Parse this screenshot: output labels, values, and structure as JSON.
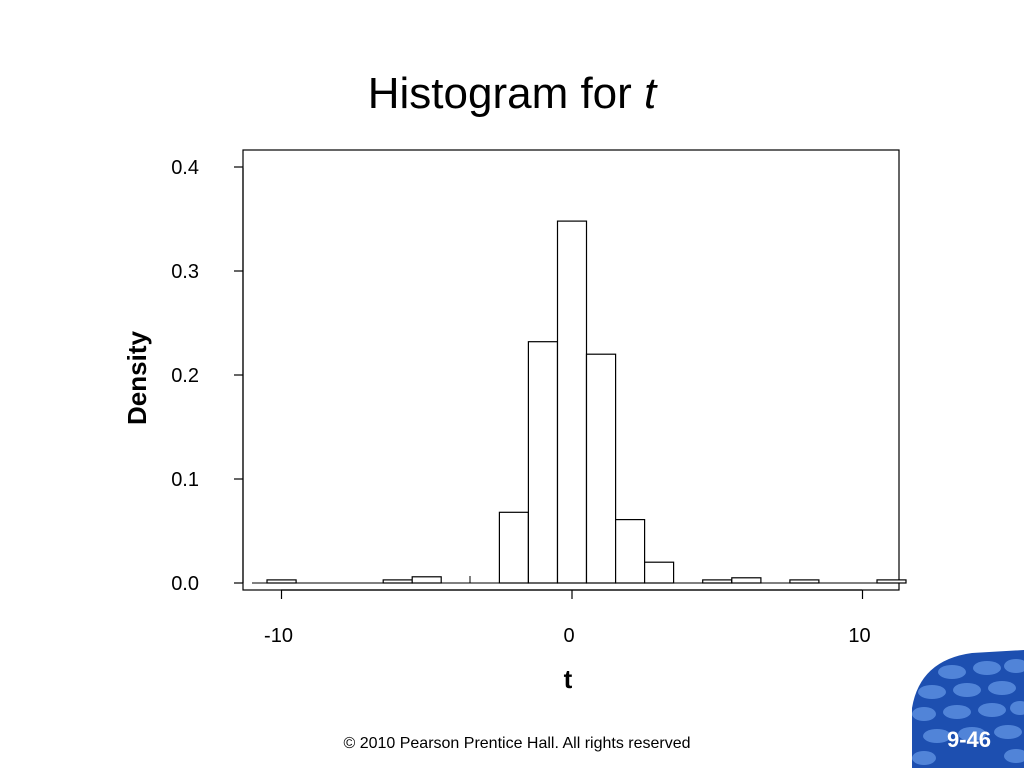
{
  "slide": {
    "title_text": "Histogram for ",
    "title_var": "t",
    "footer": "© 2010 Pearson Prentice Hall. All rights reserved",
    "slide_number": "9-46"
  },
  "colors": {
    "bar_fill": "#ffffff",
    "bar_stroke": "#000000",
    "badge_blue": "#1d4fb0",
    "badge_dots": "#5b8ee0"
  },
  "chart_data": {
    "type": "bar",
    "title": "",
    "xlabel": "t",
    "ylabel": "Density",
    "xlim": [
      -11,
      11
    ],
    "ylim": [
      0,
      0.4
    ],
    "xticks": [
      -10,
      0,
      10
    ],
    "xtick_labels": [
      "-10",
      "0",
      "10"
    ],
    "yticks": [
      0,
      0.1,
      0.2,
      0.3,
      0.4
    ],
    "ytick_labels": [
      "0.0",
      "0.1",
      "0.2",
      "0.3",
      "0.4"
    ],
    "grid": false,
    "bin_width": 1,
    "bins": [
      {
        "start": -10.5,
        "end": -9.5,
        "density": 0.003
      },
      {
        "start": -6.5,
        "end": -5.5,
        "density": 0.003
      },
      {
        "start": -5.5,
        "end": -4.5,
        "density": 0.006
      },
      {
        "start": -2.5,
        "end": -1.5,
        "density": 0.068
      },
      {
        "start": -1.5,
        "end": -0.5,
        "density": 0.232
      },
      {
        "start": -0.5,
        "end": 0.5,
        "density": 0.348
      },
      {
        "start": 0.5,
        "end": 1.5,
        "density": 0.22
      },
      {
        "start": 1.5,
        "end": 2.5,
        "density": 0.061
      },
      {
        "start": 2.5,
        "end": 3.5,
        "density": 0.02
      },
      {
        "start": 4.5,
        "end": 5.5,
        "density": 0.003
      },
      {
        "start": 5.5,
        "end": 6.5,
        "density": 0.005
      },
      {
        "start": 7.5,
        "end": 8.5,
        "density": 0.003
      },
      {
        "start": 10.5,
        "end": 11.5,
        "density": 0.003
      }
    ]
  }
}
